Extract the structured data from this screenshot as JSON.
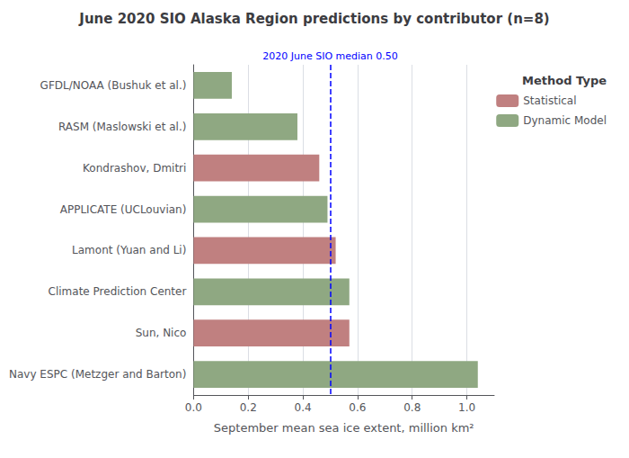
{
  "chart_data": {
    "type": "bar",
    "orientation": "horizontal",
    "title": "June 2020 SIO Alaska Region predictions by contributor (n=8)",
    "xlabel": "September mean sea ice extent, million km²",
    "categories": [
      "GFDL/NOAA (Bushuk et al.)",
      "RASM (Maslowski et al.)",
      "Kondrashov, Dmitri",
      "APPLICATE (UCLouvian)",
      "Lamont (Yuan and Li)",
      "Climate Prediction Center",
      "Sun, Nico",
      "Navy ESPC (Metzger and Barton)"
    ],
    "series": [
      {
        "name": "Statistical",
        "color": "#C08080",
        "values": [
          null,
          null,
          0.46,
          null,
          0.52,
          null,
          0.57,
          null
        ]
      },
      {
        "name": "Dynamic Model",
        "color": "#8FA882",
        "values": [
          0.14,
          0.38,
          null,
          0.49,
          null,
          0.57,
          null,
          1.04
        ]
      }
    ],
    "xlim": [
      0.0,
      1.1
    ],
    "xticks": [
      {
        "value": 0,
        "label": "0.0"
      },
      0.2,
      0.4,
      0.6,
      0.8,
      {
        "value": 1,
        "label": "1.0"
      }
    ],
    "grid": true,
    "legend": "upper right",
    "legend_title": "Method Type",
    "annotations": [
      {
        "type": "vline",
        "x": 0.5,
        "text": "2020 June SIO median 0.50",
        "color": "blue",
        "line_style": "dashed"
      }
    ]
  }
}
